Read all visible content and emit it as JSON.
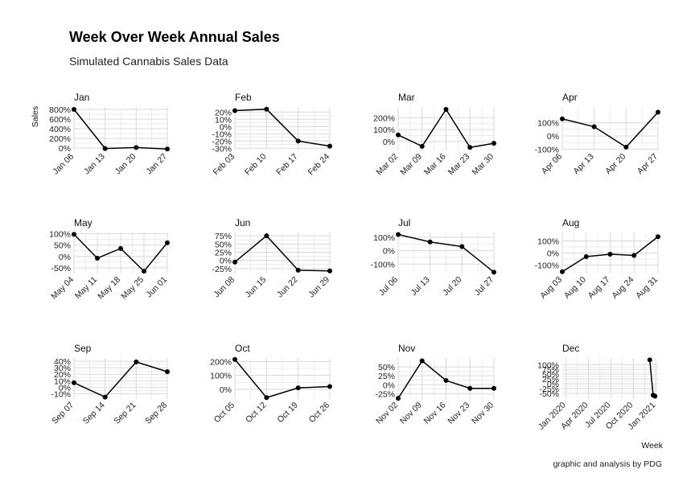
{
  "title": "Week Over Week Annual Sales",
  "subtitle": "Simulated Cannabis Sales Data",
  "caption": "graphic and analysis by PDG",
  "colors": {
    "line": "#000000",
    "grid": "#d9d9d9",
    "text": "#222222"
  },
  "chart_data": {
    "type": "line",
    "title": "Week Over Week Annual Sales",
    "subtitle": "Simulated Cannabis Sales Data",
    "xlabel": "Week",
    "ylabel": "Sales",
    "grid": true,
    "facets": [
      {
        "panel": "Jan",
        "x": [
          "Jan 06",
          "Jan 13",
          "Jan 20",
          "Jan 27"
        ],
        "ylim": [
          -50,
          850
        ],
        "yticks": [
          "0%",
          "200%",
          "400%",
          "600%",
          "800%"
        ],
        "series": [
          {
            "values": [
              800,
              -10,
              10,
              -20
            ]
          }
        ]
      },
      {
        "panel": "Feb",
        "x": [
          "Feb 03",
          "Feb 10",
          "Feb 17",
          "Feb 24"
        ],
        "ylim": [
          -33,
          27
        ],
        "yticks": [
          "-30%",
          "-20%",
          "-10%",
          "0%",
          "10%",
          "20%"
        ],
        "series": [
          {
            "values": [
              22,
              24,
              -20,
              -27
            ]
          }
        ]
      },
      {
        "panel": "Mar",
        "x": [
          "Mar 02",
          "Mar 09",
          "Mar 16",
          "Mar 23",
          "Mar 30"
        ],
        "ylim": [
          -75,
          290
        ],
        "yticks": [
          "0%",
          "100%",
          "200%"
        ],
        "series": [
          {
            "values": [
              55,
              -40,
              270,
              -50,
              -15
            ]
          }
        ]
      },
      {
        "panel": "Apr",
        "x": [
          "Apr 06",
          "Apr 13",
          "Apr 20",
          "Apr 27"
        ],
        "ylim": [
          -110,
          220
        ],
        "yticks": [
          "-100%",
          "0%",
          "100%"
        ],
        "series": [
          {
            "values": [
              130,
              70,
              -85,
              180
            ]
          }
        ]
      },
      {
        "panel": "May",
        "x": [
          "May 04",
          "May 11",
          "May 18",
          "May 25",
          "Jun 01"
        ],
        "ylim": [
          -75,
          105
        ],
        "yticks": [
          "-50%",
          "0%",
          "50%",
          "100%"
        ],
        "series": [
          {
            "values": [
              97,
              -8,
              35,
              -65,
              60
            ]
          }
        ]
      },
      {
        "panel": "Jun",
        "x": [
          "Jun 08",
          "Jun 15",
          "Jun 22",
          "Jun 29"
        ],
        "ylim": [
          -40,
          85
        ],
        "yticks": [
          "-25%",
          "0%",
          "25%",
          "50%",
          "75%"
        ],
        "series": [
          {
            "values": [
              -5,
              75,
              -30,
              -32
            ]
          }
        ]
      },
      {
        "panel": "Jul",
        "x": [
          "Jul 06",
          "Jul 13",
          "Jul 20",
          "Jul 27"
        ],
        "ylim": [
          -170,
          135
        ],
        "yticks": [
          "-100%",
          "0%",
          "100%"
        ],
        "series": [
          {
            "values": [
              120,
              65,
              30,
              -160
            ]
          }
        ]
      },
      {
        "panel": "Aug",
        "x": [
          "Aug 03",
          "Aug 10",
          "Aug 17",
          "Aug 24",
          "Aug 31"
        ],
        "ylim": [
          -170,
          170
        ],
        "yticks": [
          "-100%",
          "0%",
          "100%"
        ],
        "series": [
          {
            "values": [
              -155,
              -30,
              -10,
              -20,
              135
            ]
          }
        ]
      },
      {
        "panel": "Sep",
        "x": [
          "Sep 07",
          "Sep 14",
          "Sep 21",
          "Sep 28"
        ],
        "ylim": [
          -18,
          45
        ],
        "yticks": [
          "-10%",
          "0%",
          "10%",
          "20%",
          "30%",
          "40%"
        ],
        "series": [
          {
            "values": [
              7,
              -15,
              39,
              24
            ]
          }
        ]
      },
      {
        "panel": "Oct",
        "x": [
          "Oct 05",
          "Oct 12",
          "Oct 19",
          "Oct 26"
        ],
        "ylim": [
          -70,
          225
        ],
        "yticks": [
          "0%",
          "100%",
          "200%"
        ],
        "series": [
          {
            "values": [
              215,
              -60,
              10,
              20
            ]
          }
        ]
      },
      {
        "panel": "Nov",
        "x": [
          "Nov 02",
          "Nov 09",
          "Nov 16",
          "Nov 23",
          "Nov 30"
        ],
        "ylim": [
          -40,
          75
        ],
        "yticks": [
          "-25%",
          "0%",
          "25%",
          "50%"
        ],
        "series": [
          {
            "values": [
              -38,
              67,
              12,
              -10,
              -10
            ]
          }
        ]
      },
      {
        "panel": "Dec",
        "x": [
          "Jan 2020",
          "Apr 2020",
          "Jul 2020",
          "Oct 2020",
          "Jan 2021"
        ],
        "ylim": [
          -80,
          135
        ],
        "yticks": [
          "-50%",
          "-25%",
          "0%",
          "25%",
          "50%",
          "75%",
          "100%"
        ],
        "series": [
          {
            "x": [
              "Dec 07 2020",
              "Dec 21 2020",
              "Dec 28 2020"
            ],
            "values": [
              125,
              -60,
              -65
            ]
          }
        ]
      }
    ]
  }
}
